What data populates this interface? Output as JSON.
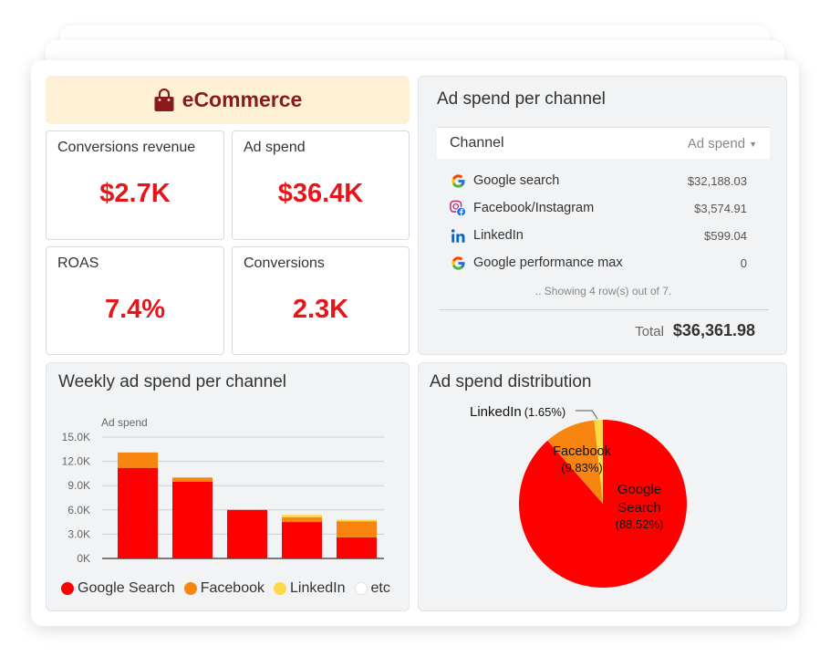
{
  "header": {
    "title": "eCommerce",
    "icon": "shopping-bag-icon"
  },
  "kpis": [
    {
      "label": "Conversions revenue",
      "value": "$2.7K"
    },
    {
      "label": "Ad spend",
      "value": "$36.4K"
    },
    {
      "label": "ROAS",
      "value": "7.4%"
    },
    {
      "label": "Conversions",
      "value": "2.3K"
    }
  ],
  "ad_spend_table": {
    "title": "Ad spend per channel",
    "col_channel": "Channel",
    "col_spend": "Ad spend",
    "sort_icon": "caret-down-icon",
    "rows": [
      {
        "icon": "google-icon",
        "channel": "Google search",
        "spend": "$32,188.03"
      },
      {
        "icon": "instagram-facebook-icon",
        "channel": "Facebook/Instagram",
        "spend": "$3,574.91"
      },
      {
        "icon": "linkedin-icon",
        "channel": "LinkedIn",
        "spend": "$599.04"
      },
      {
        "icon": "google-icon",
        "channel": "Google performance max",
        "spend": "0"
      }
    ],
    "note": ".. Showing 4 row(s) out of 7.",
    "total_label": "Total",
    "total_value": "$36,361.98"
  },
  "weekly_chart": {
    "title": "Weekly ad spend per channel",
    "ylabel": "Ad spend",
    "legend": [
      "Google Search",
      "Facebook",
      "LinkedIn",
      "etc"
    ]
  },
  "pie_chart": {
    "title": "Ad spend distribution",
    "labels": {
      "linkedin": "LinkedIn",
      "linkedin_pct": "(1.65%)",
      "facebook": "Facebook",
      "facebook_pct": "(9.83%)",
      "google_line1": "Google",
      "google_line2": "Search",
      "google_pct": "(88.52%)"
    }
  },
  "colors": {
    "google": "#ff0000",
    "facebook": "#f7850f",
    "linkedin": "#ffd94a",
    "etc": "#ffffff",
    "kpi_value": "#e8141a",
    "header_bg": "#fdf0d5",
    "header_text": "#8b1a1a"
  },
  "chart_data": [
    {
      "type": "bar",
      "stacked": true,
      "title": "Weekly ad spend per channel",
      "ylabel": "Ad spend",
      "xlabel": "",
      "ylim": [
        0,
        15000
      ],
      "yticks": [
        "15.0K",
        "12.0K",
        "9.0K",
        "6.0K",
        "3.0K",
        "0K"
      ],
      "ytick_values": [
        15000,
        12000,
        9000,
        6000,
        3000,
        0
      ],
      "grid": true,
      "legend_position": "bottom",
      "categories": [
        "",
        "",
        "",
        "",
        ""
      ],
      "series": [
        {
          "name": "Google Search",
          "color": "#ff0000",
          "values": [
            11200,
            9500,
            6000,
            4500,
            2600
          ]
        },
        {
          "name": "Facebook",
          "color": "#f7850f",
          "values": [
            1900,
            500,
            0,
            600,
            2000
          ]
        },
        {
          "name": "LinkedIn",
          "color": "#ffd94a",
          "values": [
            0,
            0,
            0,
            300,
            200
          ]
        },
        {
          "name": "etc",
          "color": "#ffffff",
          "values": [
            0,
            0,
            0,
            0,
            0
          ]
        }
      ]
    },
    {
      "type": "pie",
      "title": "Ad spend distribution",
      "slices": [
        {
          "name": "Google Search",
          "value": 88.52,
          "color": "#ff0000"
        },
        {
          "name": "Facebook",
          "value": 9.83,
          "color": "#f7850f"
        },
        {
          "name": "LinkedIn",
          "value": 1.65,
          "color": "#ffd94a"
        }
      ]
    }
  ]
}
